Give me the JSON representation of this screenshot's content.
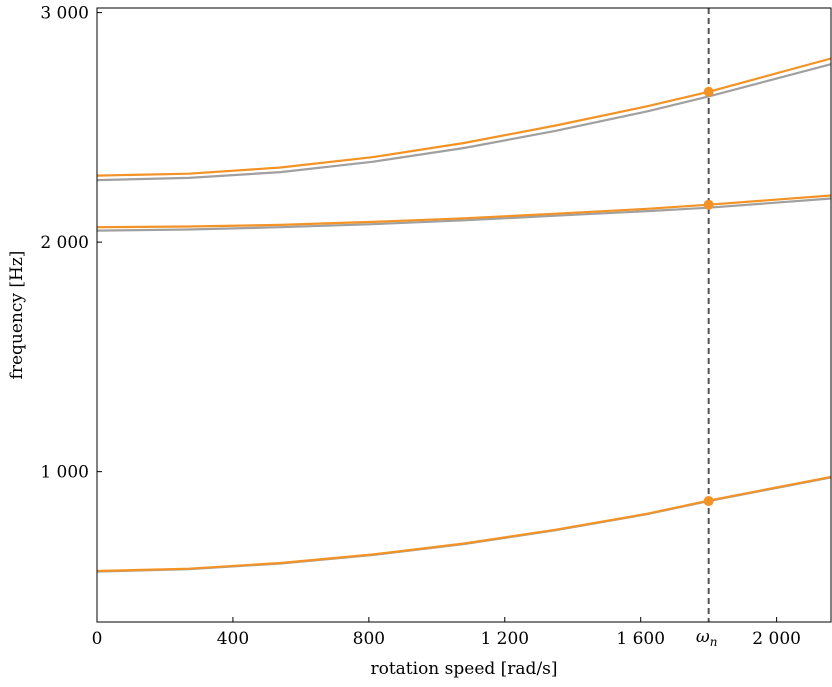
{
  "chart_data": {
    "type": "line",
    "xlabel": "rotation speed [rad/s]",
    "ylabel": "frequency [Hz]",
    "xlim": [
      0,
      2160
    ],
    "ylim": [
      345,
      3020
    ],
    "xticks": [
      {
        "value": 0,
        "label": "0"
      },
      {
        "value": 400,
        "label": "400"
      },
      {
        "value": 800,
        "label": "800"
      },
      {
        "value": 1200,
        "label": "1 200"
      },
      {
        "value": 1600,
        "label": "1 600"
      },
      {
        "value": 2000,
        "label": "2 000"
      }
    ],
    "yticks": [
      {
        "value": 1000,
        "label": "1 000"
      },
      {
        "value": 2000,
        "label": "2 000"
      },
      {
        "value": 3000,
        "label": "3 000"
      }
    ],
    "marker_line": {
      "x": 1800,
      "label": "ω",
      "subscript": "n",
      "style": "dashed"
    },
    "grid": false,
    "colors": {
      "orange": "#f39325",
      "gray": "#a0a0a0",
      "marker_line": "#555555"
    },
    "x": [
      0,
      270,
      540,
      810,
      1080,
      1350,
      1620,
      1800,
      2160
    ],
    "series": [
      {
        "color": "gray",
        "values": [
          565,
          575,
          600,
          637,
          685,
          745,
          815,
          872,
          975
        ]
      },
      {
        "color": "orange",
        "values": [
          567,
          577,
          602,
          639,
          687,
          747,
          817,
          874,
          977
        ]
      },
      {
        "color": "gray",
        "values": [
          2050,
          2055,
          2065,
          2078,
          2095,
          2115,
          2135,
          2150,
          2190
        ]
      },
      {
        "color": "orange",
        "values": [
          2065,
          2068,
          2075,
          2088,
          2104,
          2124,
          2145,
          2163,
          2203
        ]
      },
      {
        "color": "gray",
        "values": [
          2270,
          2280,
          2305,
          2350,
          2410,
          2485,
          2570,
          2635,
          2775
        ]
      },
      {
        "color": "orange",
        "values": [
          2290,
          2298,
          2325,
          2370,
          2432,
          2508,
          2592,
          2655,
          2800
        ]
      }
    ],
    "markers": [
      {
        "x": 1800,
        "y": 872
      },
      {
        "x": 1800,
        "y": 2163
      },
      {
        "x": 1800,
        "y": 2655
      }
    ]
  }
}
